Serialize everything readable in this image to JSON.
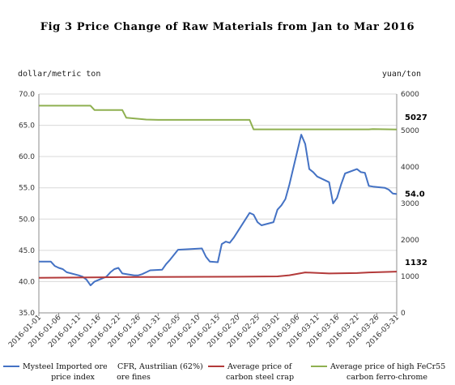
{
  "chart_data": {
    "type": "line",
    "title": "Fig 3 Price Change of Raw Materials from Jan to Mar 2016",
    "ylabel_left": "dollar/metric ton",
    "ylabel_right": "yuan/ton",
    "ylim_left": [
      35,
      70
    ],
    "ylim_right": [
      0,
      6000
    ],
    "yticks_left": [
      "35.0",
      "40.0",
      "45.0",
      "50.0",
      "55.0",
      "60.0",
      "65.0",
      "70.0"
    ],
    "yticks_right": [
      "0",
      "1000",
      "2000",
      "3000",
      "4000",
      "5000",
      "6000"
    ],
    "x_range": [
      "2016-01-01",
      "2016-03-31"
    ],
    "xticks": [
      "2016-01-01",
      "2016-01-06",
      "2016-01-11",
      "2016-01-16",
      "2016-01-21",
      "2016-01-26",
      "2016-01-31",
      "2016-02-05",
      "2016-02-10",
      "2016-02-15",
      "2016-02-20",
      "2016-02-25",
      "2016-03-01",
      "2016-03-06",
      "2016-03-11",
      "2016-03-16",
      "2016-03-21",
      "2016-03-26",
      "2016-03-31"
    ],
    "grid": true,
    "legend_position": "bottom",
    "series": [
      {
        "name": "Mysteel  Imported ore price index  CFR, Austrilian (62%) ore fines",
        "legend_lines": [
          "Mysteel  Imported ore",
          "price index",
          "CFR, Austrilian (62%)",
          "ore fines"
        ],
        "axis": "left",
        "color": "#4472c4",
        "end_label": "54.0",
        "points": [
          [
            "2016-01-01",
            43.2
          ],
          [
            "2016-01-04",
            43.2
          ],
          [
            "2016-01-05",
            42.5
          ],
          [
            "2016-01-06",
            42.2
          ],
          [
            "2016-01-07",
            42.0
          ],
          [
            "2016-01-08",
            41.5
          ],
          [
            "2016-01-11",
            41.0
          ],
          [
            "2016-01-12",
            40.8
          ],
          [
            "2016-01-13",
            40.3
          ],
          [
            "2016-01-14",
            39.4
          ],
          [
            "2016-01-15",
            40.0
          ],
          [
            "2016-01-18",
            40.8
          ],
          [
            "2016-01-19",
            41.5
          ],
          [
            "2016-01-20",
            42.0
          ],
          [
            "2016-01-21",
            42.2
          ],
          [
            "2016-01-22",
            41.3
          ],
          [
            "2016-01-25",
            41.0
          ],
          [
            "2016-01-26",
            41.0
          ],
          [
            "2016-01-27",
            41.2
          ],
          [
            "2016-01-28",
            41.5
          ],
          [
            "2016-01-29",
            41.8
          ],
          [
            "2016-02-01",
            41.9
          ],
          [
            "2016-02-02",
            42.8
          ],
          [
            "2016-02-03",
            43.5
          ],
          [
            "2016-02-04",
            44.3
          ],
          [
            "2016-02-05",
            45.1
          ],
          [
            "2016-02-11",
            45.3
          ],
          [
            "2016-02-12",
            44.0
          ],
          [
            "2016-02-13",
            43.2
          ],
          [
            "2016-02-15",
            43.1
          ],
          [
            "2016-02-16",
            46.0
          ],
          [
            "2016-02-17",
            46.4
          ],
          [
            "2016-02-18",
            46.2
          ],
          [
            "2016-02-19",
            47.0
          ],
          [
            "2016-02-22",
            50.0
          ],
          [
            "2016-02-23",
            51.0
          ],
          [
            "2016-02-24",
            50.7
          ],
          [
            "2016-02-25",
            49.5
          ],
          [
            "2016-02-26",
            49.0
          ],
          [
            "2016-02-29",
            49.5
          ],
          [
            "2016-03-01",
            51.5
          ],
          [
            "2016-03-02",
            52.2
          ],
          [
            "2016-03-03",
            53.2
          ],
          [
            "2016-03-04",
            55.5
          ],
          [
            "2016-03-07",
            63.5
          ],
          [
            "2016-03-08",
            62.0
          ],
          [
            "2016-03-09",
            58.0
          ],
          [
            "2016-03-10",
            57.5
          ],
          [
            "2016-03-11",
            56.8
          ],
          [
            "2016-03-14",
            55.9
          ],
          [
            "2016-03-15",
            52.5
          ],
          [
            "2016-03-16",
            53.4
          ],
          [
            "2016-03-17",
            55.5
          ],
          [
            "2016-03-18",
            57.3
          ],
          [
            "2016-03-21",
            58.0
          ],
          [
            "2016-03-22",
            57.5
          ],
          [
            "2016-03-23",
            57.4
          ],
          [
            "2016-03-24",
            55.3
          ],
          [
            "2016-03-25",
            55.2
          ],
          [
            "2016-03-28",
            55.0
          ],
          [
            "2016-03-29",
            54.7
          ],
          [
            "2016-03-30",
            54.1
          ],
          [
            "2016-03-31",
            54.0
          ]
        ]
      },
      {
        "name": "Average price of carbon steel crap",
        "legend_lines": [
          "Average price of",
          "carbon steel crap"
        ],
        "axis": "right",
        "color": "#b33a3a",
        "end_label": "1132",
        "points": [
          [
            "2016-01-01",
            960
          ],
          [
            "2016-01-21",
            980
          ],
          [
            "2016-02-20",
            990
          ],
          [
            "2016-03-01",
            1000
          ],
          [
            "2016-03-04",
            1030
          ],
          [
            "2016-03-08",
            1110
          ],
          [
            "2016-03-14",
            1080
          ],
          [
            "2016-03-21",
            1090
          ],
          [
            "2016-03-24",
            1110
          ],
          [
            "2016-03-31",
            1132
          ]
        ]
      },
      {
        "name": "Average price of high FeCr55 carbon ferro-chrome",
        "legend_lines": [
          "Average price of high FeCr55",
          "carbon ferro-chrome"
        ],
        "axis": "right",
        "color": "#8fb050",
        "end_label": "5027",
        "points": [
          [
            "2016-01-01",
            5680
          ],
          [
            "2016-01-14",
            5680
          ],
          [
            "2016-01-15",
            5560
          ],
          [
            "2016-01-22",
            5560
          ],
          [
            "2016-01-23",
            5350
          ],
          [
            "2016-01-28",
            5300
          ],
          [
            "2016-01-31",
            5290
          ],
          [
            "2016-02-23",
            5290
          ],
          [
            "2016-02-24",
            5030
          ],
          [
            "2016-03-24",
            5030
          ],
          [
            "2016-03-25",
            5040
          ],
          [
            "2016-03-31",
            5027
          ]
        ]
      }
    ]
  }
}
